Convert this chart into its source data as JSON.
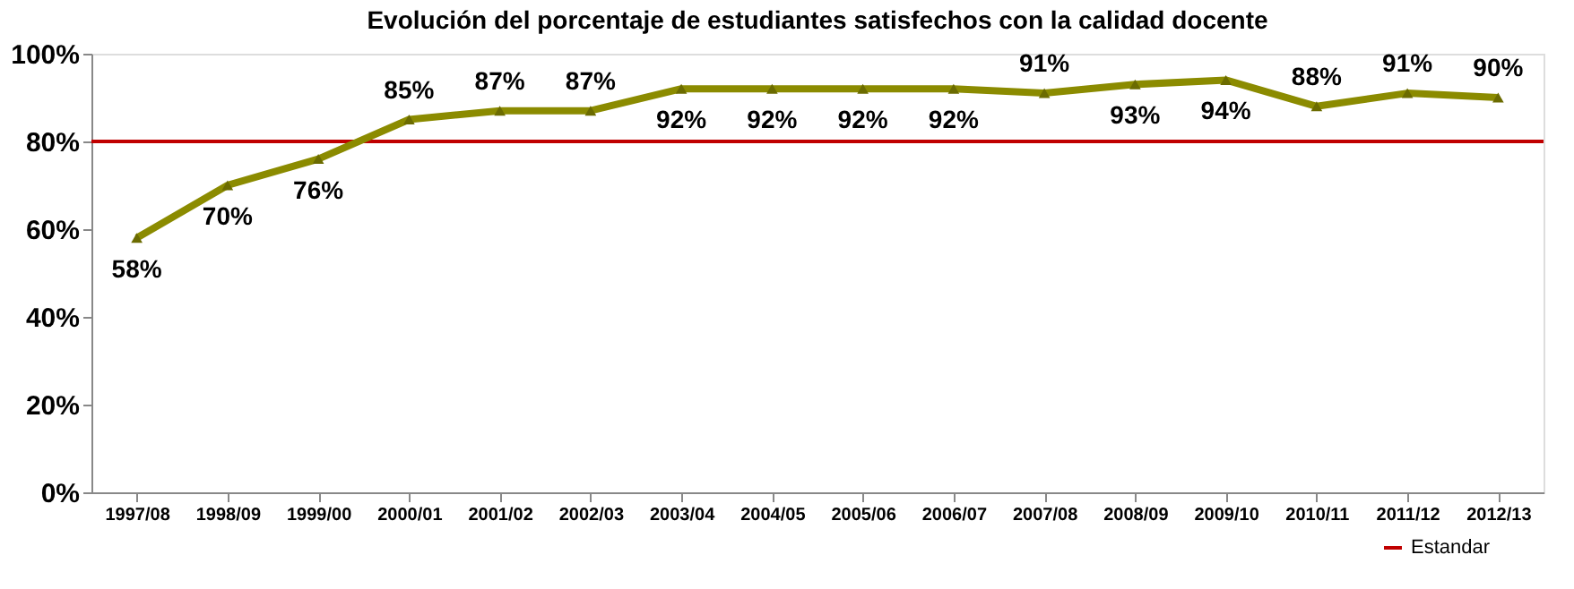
{
  "chart_data": {
    "type": "line",
    "title": "Evolución del porcentaje de estudiantes satisfechos con la calidad docente",
    "categories": [
      "1997/08",
      "1998/09",
      "1999/00",
      "2000/01",
      "2001/02",
      "2002/03",
      "2003/04",
      "2004/05",
      "2005/06",
      "2006/07",
      "2007/08",
      "2008/09",
      "2009/10",
      "2010/11",
      "2011/12",
      "2012/13"
    ],
    "series": [
      {
        "color": "#8b8b00",
        "values": [
          58,
          70,
          76,
          85,
          87,
          87,
          92,
          92,
          92,
          92,
          91,
          93,
          94,
          88,
          91,
          90
        ],
        "value_labels": [
          "58%",
          "70%",
          "76%",
          "85%",
          "87%",
          "87%",
          "92%",
          "92%",
          "92%",
          "92%",
          "91%",
          "93%",
          "94%",
          "88%",
          "91%",
          "90%"
        ]
      }
    ],
    "ylim": [
      0,
      100
    ],
    "yticks": [
      {
        "value": 0,
        "label": "0%"
      },
      {
        "value": 20,
        "label": "20%"
      },
      {
        "value": 40,
        "label": "40%"
      },
      {
        "value": 60,
        "label": "60%"
      },
      {
        "value": 80,
        "label": "80%"
      },
      {
        "value": 100,
        "label": "100%"
      }
    ],
    "ref_lines": [
      {
        "axis": "y",
        "value": 80,
        "label": "Estandar",
        "color": "#c00000"
      }
    ],
    "marker": "triangle",
    "legend": "bottom right",
    "grid": false
  }
}
